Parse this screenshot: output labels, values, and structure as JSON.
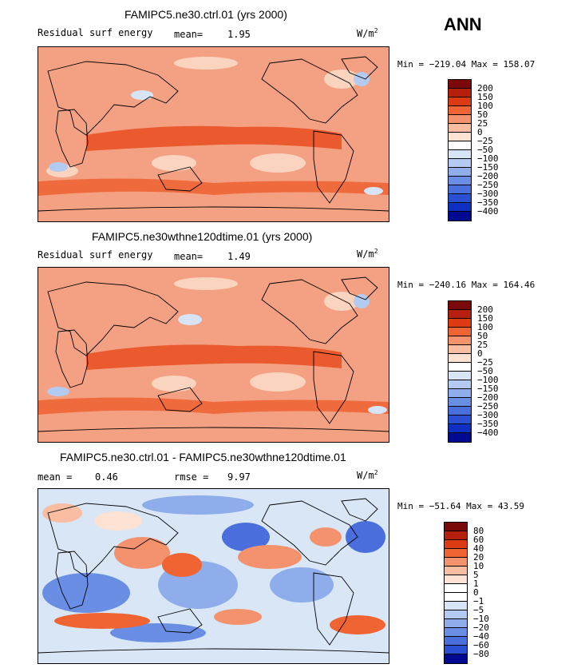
{
  "season": "ANN",
  "units_main": "W/m",
  "units_sup": "2",
  "panels": [
    {
      "title": "FAMIPC5.ne30.ctrl.01 (yrs 2000)",
      "variable": "Residual surf energy",
      "stat_label": "mean=",
      "stat_value": "1.95",
      "minmax": "Min = −219.04 Max = 158.07",
      "base_color": "#f4a183",
      "levels": [
        "200",
        "150",
        "100",
        "50",
        "25",
        "0",
        "−25",
        "−50",
        "−100",
        "−150",
        "−200",
        "−250",
        "−300",
        "−350",
        "−400"
      ]
    },
    {
      "title": "FAMIPC5.ne30wthne120dtime.01 (yrs 2000)",
      "variable": "Residual surf energy",
      "stat_label": "mean=",
      "stat_value": "1.49",
      "minmax": "Min = −240.16 Max = 164.46",
      "base_color": "#f4a183",
      "levels": [
        "200",
        "150",
        "100",
        "50",
        "25",
        "0",
        "−25",
        "−50",
        "−100",
        "−150",
        "−200",
        "−250",
        "−300",
        "−350",
        "−400"
      ]
    },
    {
      "title": "FAMIPC5.ne30.ctrl.01 - FAMIPC5.ne30wthne120dtime.01",
      "mean_label": "mean =",
      "mean_value": "0.46",
      "rmse_label": "rmse =",
      "rmse_value": "9.97",
      "minmax": "Min = −51.64 Max =  43.59",
      "base_color": "#d8e6f6",
      "levels": [
        "80",
        "60",
        "40",
        "20",
        "10",
        "5",
        "1",
        "0",
        "−1",
        "−5",
        "−10",
        "−20",
        "−40",
        "−60",
        "−80"
      ]
    }
  ],
  "colorbar_colors": [
    "#7a0a0a",
    "#b5200e",
    "#dc3a12",
    "#ef6432",
    "#f4926e",
    "#f9bda2",
    "#fde1d2",
    "#ffffff",
    "#d6e4f6",
    "#b3cbf0",
    "#8fadea",
    "#6a8ee4",
    "#4a6fdc",
    "#2a4fd2",
    "#1030c4",
    "#000a90"
  ],
  "diff_colorbar_colors": [
    "#7a0a0a",
    "#b5200e",
    "#dc3a12",
    "#ef6432",
    "#f4926e",
    "#f9bda2",
    "#fde1d2",
    "#ffffff",
    "#ffffff",
    "#d6e4f6",
    "#b3cbf0",
    "#8fadea",
    "#6a8ee4",
    "#4a6fdc",
    "#2a4fd2",
    "#000a90"
  ]
}
